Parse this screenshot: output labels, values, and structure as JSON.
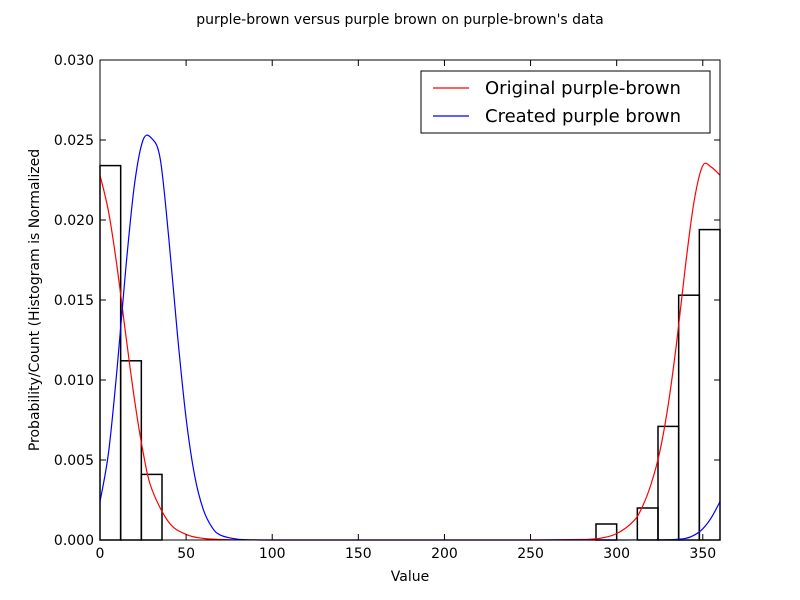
{
  "chart_data": {
    "type": "bar",
    "title": "purple-brown versus purple brown on purple-brown's data",
    "xlabel": "Value",
    "ylabel": "Probability/Count (Histogram is Normalized",
    "xlim": [
      0,
      360
    ],
    "ylim": [
      0,
      0.03
    ],
    "xticks": [
      0,
      50,
      100,
      150,
      200,
      250,
      300,
      350
    ],
    "yticks": [
      0.0,
      0.005,
      0.01,
      0.015,
      0.02,
      0.025,
      0.03
    ],
    "ytick_labels": [
      "0.000",
      "0.005",
      "0.010",
      "0.015",
      "0.020",
      "0.025",
      "0.030"
    ],
    "grid": false,
    "legend_position": "top-right",
    "histogram": {
      "bin_edges": [
        0,
        12,
        24,
        36,
        48,
        60,
        72,
        84,
        96,
        108,
        120,
        132,
        144,
        156,
        168,
        180,
        192,
        204,
        216,
        228,
        240,
        252,
        264,
        276,
        288,
        300,
        312,
        324,
        336,
        348,
        360
      ],
      "values": [
        0.0234,
        0.0112,
        0.0041,
        0,
        0,
        0,
        0,
        0,
        0,
        0,
        0,
        0,
        0,
        0,
        0,
        0,
        0,
        0,
        0,
        0,
        0,
        0,
        0,
        0,
        0.001,
        0,
        0.002,
        0.0071,
        0.0153,
        0.0194
      ]
    },
    "series": [
      {
        "name": "Original purple-brown",
        "color": "#ff0000",
        "type": "line",
        "x": [
          0,
          5,
          10,
          15,
          20,
          25,
          30,
          40,
          50,
          60,
          70,
          80,
          100,
          150,
          200,
          250,
          280,
          290,
          300,
          310,
          315,
          320,
          325,
          330,
          335,
          340,
          345,
          350,
          355,
          360
        ],
        "y": [
          0.0228,
          0.0205,
          0.017,
          0.0128,
          0.0088,
          0.0055,
          0.0032,
          0.0011,
          0.00035,
          0.0001,
          3e-05,
          1e-05,
          0,
          0,
          0,
          0,
          3e-05,
          0.0001,
          0.0004,
          0.0012,
          0.0021,
          0.0035,
          0.0055,
          0.0085,
          0.0125,
          0.0172,
          0.0212,
          0.0234,
          0.0233,
          0.0228
        ]
      },
      {
        "name": "Created purple brown",
        "color": "#0000ff",
        "type": "line",
        "x": [
          0,
          5,
          10,
          15,
          20,
          25,
          30,
          35,
          40,
          45,
          50,
          55,
          60,
          65,
          70,
          80,
          90,
          100,
          110,
          150,
          200,
          250,
          300,
          330,
          340,
          345,
          350,
          355,
          360
        ],
        "y": [
          0.0024,
          0.0055,
          0.0108,
          0.017,
          0.0222,
          0.025,
          0.0251,
          0.0238,
          0.0188,
          0.0128,
          0.0076,
          0.004,
          0.0019,
          0.0008,
          0.0003,
          5e-05,
          1e-05,
          0,
          0,
          0,
          0,
          0,
          0,
          2e-05,
          0.0001,
          0.0003,
          0.0007,
          0.0014,
          0.0024
        ]
      }
    ]
  }
}
